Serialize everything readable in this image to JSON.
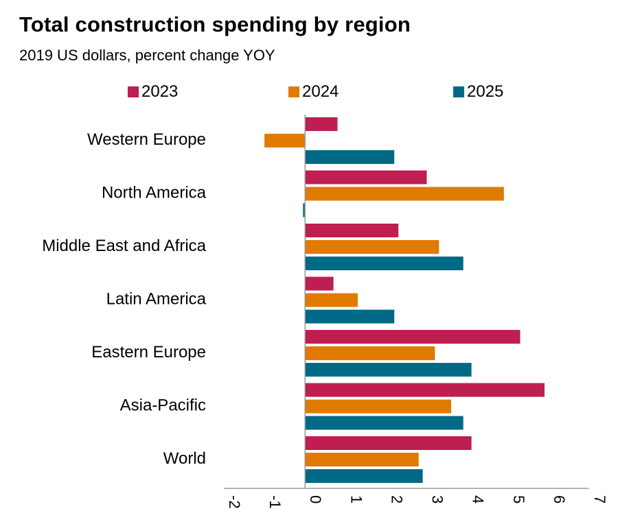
{
  "title": "Total construction spending by region",
  "subtitle": "2019 US dollars, percent change YOY",
  "chart_data": {
    "type": "bar",
    "orientation": "horizontal",
    "title": "Total construction spending by region",
    "subtitle": "2019 US dollars, percent change YOY",
    "xlabel": "",
    "ylabel": "",
    "xlim": [
      -2,
      7
    ],
    "x_ticks": [
      "-2",
      "-1",
      "0",
      "1",
      "2",
      "3",
      "4",
      "5",
      "6",
      "7"
    ],
    "grid": false,
    "legend_position": "top",
    "categories": [
      "Western Europe",
      "North America",
      "Middle East and Africa",
      "Latin America",
      "Eastern Europe",
      "Asia-Pacific",
      "World"
    ],
    "series": [
      {
        "name": "2023",
        "color": "#BE1E50",
        "values": [
          0.8,
          3.0,
          2.3,
          0.7,
          5.3,
          5.9,
          4.1
        ]
      },
      {
        "name": "2024",
        "color": "#E07B00",
        "values": [
          -1.0,
          4.9,
          3.3,
          1.3,
          3.2,
          3.6,
          2.8
        ]
      },
      {
        "name": "2025",
        "color": "#006A86",
        "values": [
          2.2,
          -0.05,
          3.9,
          2.2,
          4.1,
          3.9,
          2.9
        ]
      }
    ]
  }
}
